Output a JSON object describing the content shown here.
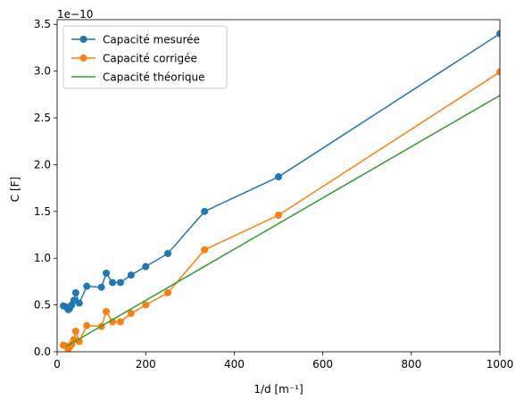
{
  "chart_data": {
    "type": "line",
    "xlabel": "1/d [m⁻¹]",
    "ylabel": "C [F]",
    "y_offset_text": "1e−10",
    "xlim": [
      0,
      1000
    ],
    "ylim": [
      0,
      3.55
    ],
    "y_scale_exponent": -10,
    "x_ticks": [
      0,
      200,
      400,
      600,
      800,
      1000
    ],
    "y_ticks": [
      0.0,
      0.5,
      1.0,
      1.5,
      2.0,
      2.5,
      3.0,
      3.5
    ],
    "legend_position": "top-left",
    "series": [
      {
        "name": "Capacité mesurée",
        "color": "#1f77b4",
        "marker": "circle",
        "x": [
          14,
          20,
          25,
          28,
          33,
          38,
          42,
          50,
          67,
          100,
          111,
          125,
          143,
          167,
          200,
          250,
          333,
          500,
          1000
        ],
        "y": [
          0.49,
          0.48,
          0.45,
          0.46,
          0.5,
          0.55,
          0.63,
          0.52,
          0.7,
          0.69,
          0.84,
          0.74,
          0.74,
          0.82,
          0.91,
          1.05,
          1.5,
          1.87,
          3.4
        ]
      },
      {
        "name": "Capacité corrigée",
        "color": "#ff7f0e",
        "marker": "circle",
        "x": [
          14,
          20,
          25,
          28,
          33,
          38,
          42,
          50,
          67,
          100,
          111,
          125,
          143,
          167,
          200,
          250,
          333,
          500,
          1000
        ],
        "y": [
          0.07,
          0.06,
          0.03,
          0.05,
          0.08,
          0.13,
          0.22,
          0.11,
          0.28,
          0.27,
          0.43,
          0.32,
          0.32,
          0.41,
          0.5,
          0.63,
          1.09,
          1.46,
          2.99
        ]
      },
      {
        "name": "Capacité théorique",
        "color": "#2ca02c",
        "marker": "none",
        "x": [
          20,
          1000
        ],
        "y": [
          0.055,
          2.74
        ]
      }
    ]
  }
}
